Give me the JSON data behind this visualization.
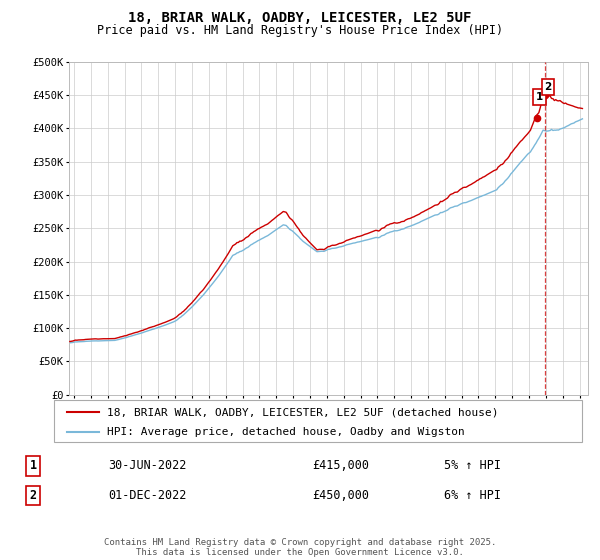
{
  "title": "18, BRIAR WALK, OADBY, LEICESTER, LE2 5UF",
  "subtitle": "Price paid vs. HM Land Registry's House Price Index (HPI)",
  "ylim": [
    0,
    500000
  ],
  "yticks": [
    0,
    50000,
    100000,
    150000,
    200000,
    250000,
    300000,
    350000,
    400000,
    450000,
    500000
  ],
  "ytick_labels": [
    "£0",
    "£50K",
    "£100K",
    "£150K",
    "£200K",
    "£250K",
    "£300K",
    "£350K",
    "£400K",
    "£450K",
    "£500K"
  ],
  "xlim_start": 1994.7,
  "xlim_end": 2025.5,
  "xticks": [
    1995,
    1996,
    1997,
    1998,
    1999,
    2000,
    2001,
    2002,
    2003,
    2004,
    2005,
    2006,
    2007,
    2008,
    2009,
    2010,
    2011,
    2012,
    2013,
    2014,
    2015,
    2016,
    2017,
    2018,
    2019,
    2020,
    2021,
    2022,
    2023,
    2024,
    2025
  ],
  "hpi_color": "#7ab8d9",
  "price_color": "#cc0000",
  "vline_color": "#cc0000",
  "vline_x": 2022.92,
  "t1_x": 2022.5,
  "t1_y": 415000,
  "t2_x": 2022.92,
  "t2_y": 450000,
  "legend_label1": "18, BRIAR WALK, OADBY, LEICESTER, LE2 5UF (detached house)",
  "legend_label2": "HPI: Average price, detached house, Oadby and Wigston",
  "transaction1_date": "30-JUN-2022",
  "transaction1_price": "£415,000",
  "transaction1_hpi": "5% ↑ HPI",
  "transaction2_date": "01-DEC-2022",
  "transaction2_price": "£450,000",
  "transaction2_hpi": "6% ↑ HPI",
  "footer": "Contains HM Land Registry data © Crown copyright and database right 2025.\nThis data is licensed under the Open Government Licence v3.0.",
  "background_color": "#ffffff",
  "grid_color": "#cccccc",
  "title_fontsize": 10,
  "subtitle_fontsize": 8.5,
  "tick_fontsize": 7.5,
  "legend_fontsize": 8,
  "table_fontsize": 8.5,
  "footer_fontsize": 6.5
}
